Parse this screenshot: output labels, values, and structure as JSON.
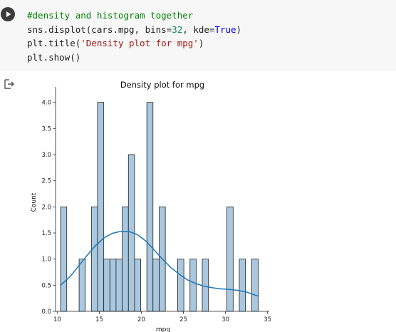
{
  "code_cell": {
    "comment": "#density and histogram together",
    "line2": {
      "pre": "sns.displot(cars.mpg, bins=",
      "bins": "32",
      "mid": ", kde=",
      "kde": "True",
      "post": ")"
    },
    "line3": {
      "pre": "plt.title(",
      "str": "'Density plot for mpg'",
      "post": ")"
    },
    "line4": "plt.show()"
  },
  "icons": {
    "run": "play-icon",
    "output": "output-arrow-icon"
  },
  "colors": {
    "bar_fill": "#a9c7de",
    "bar_edge": "#1f1f1f",
    "kde_line": "#1f77b4"
  },
  "chart_data": {
    "type": "bar",
    "title": "Density plot for mpg",
    "xlabel": "mpg",
    "ylabel": "Count",
    "xlim": [
      9.8,
      35.2
    ],
    "ylim": [
      0,
      4.2
    ],
    "x_ticks": [
      10,
      15,
      20,
      25,
      30,
      35
    ],
    "y_ticks": [
      0.0,
      0.5,
      1.0,
      1.5,
      2.0,
      2.5,
      3.0,
      3.5,
      4.0
    ],
    "bins": [
      {
        "x0": 10.4,
        "x1": 11.13,
        "count": 2
      },
      {
        "x0": 11.13,
        "x1": 11.86,
        "count": 0
      },
      {
        "x0": 11.86,
        "x1": 12.6,
        "count": 0
      },
      {
        "x0": 12.6,
        "x1": 13.33,
        "count": 1
      },
      {
        "x0": 13.33,
        "x1": 14.06,
        "count": 0
      },
      {
        "x0": 14.06,
        "x1": 14.79,
        "count": 2
      },
      {
        "x0": 14.79,
        "x1": 15.53,
        "count": 4
      },
      {
        "x0": 15.53,
        "x1": 16.26,
        "count": 1
      },
      {
        "x0": 16.26,
        "x1": 16.99,
        "count": 1
      },
      {
        "x0": 16.99,
        "x1": 17.72,
        "count": 1
      },
      {
        "x0": 17.72,
        "x1": 18.46,
        "count": 2
      },
      {
        "x0": 18.46,
        "x1": 19.19,
        "count": 3
      },
      {
        "x0": 19.19,
        "x1": 19.92,
        "count": 1
      },
      {
        "x0": 19.92,
        "x1": 20.65,
        "count": 0
      },
      {
        "x0": 20.65,
        "x1": 21.38,
        "count": 4
      },
      {
        "x0": 21.38,
        "x1": 22.12,
        "count": 1
      },
      {
        "x0": 22.12,
        "x1": 22.85,
        "count": 2
      },
      {
        "x0": 22.85,
        "x1": 23.58,
        "count": 0
      },
      {
        "x0": 23.58,
        "x1": 24.31,
        "count": 0
      },
      {
        "x0": 24.31,
        "x1": 25.05,
        "count": 1
      },
      {
        "x0": 25.05,
        "x1": 25.78,
        "count": 0
      },
      {
        "x0": 25.78,
        "x1": 26.51,
        "count": 1
      },
      {
        "x0": 26.51,
        "x1": 27.24,
        "count": 0
      },
      {
        "x0": 27.24,
        "x1": 27.98,
        "count": 1
      },
      {
        "x0": 27.98,
        "x1": 28.71,
        "count": 0
      },
      {
        "x0": 28.71,
        "x1": 29.44,
        "count": 0
      },
      {
        "x0": 29.44,
        "x1": 30.17,
        "count": 0
      },
      {
        "x0": 30.17,
        "x1": 30.91,
        "count": 2
      },
      {
        "x0": 30.91,
        "x1": 31.64,
        "count": 0
      },
      {
        "x0": 31.64,
        "x1": 32.37,
        "count": 1
      },
      {
        "x0": 32.37,
        "x1": 33.1,
        "count": 0
      },
      {
        "x0": 33.1,
        "x1": 33.9,
        "count": 1
      }
    ],
    "kde": {
      "x": [
        10.4,
        11.5,
        12.5,
        13.5,
        14.5,
        15.5,
        16.5,
        17.5,
        18.5,
        19.5,
        20.5,
        21.5,
        22.5,
        23.5,
        24.5,
        25.5,
        26.5,
        27.5,
        28.5,
        29.5,
        30.5,
        31.5,
        32.5,
        33.0,
        33.9
      ],
      "y": [
        0.5,
        0.66,
        0.86,
        1.06,
        1.25,
        1.4,
        1.49,
        1.53,
        1.53,
        1.47,
        1.35,
        1.18,
        1.0,
        0.84,
        0.71,
        0.6,
        0.53,
        0.48,
        0.45,
        0.43,
        0.42,
        0.4,
        0.37,
        0.34,
        0.29
      ]
    }
  }
}
